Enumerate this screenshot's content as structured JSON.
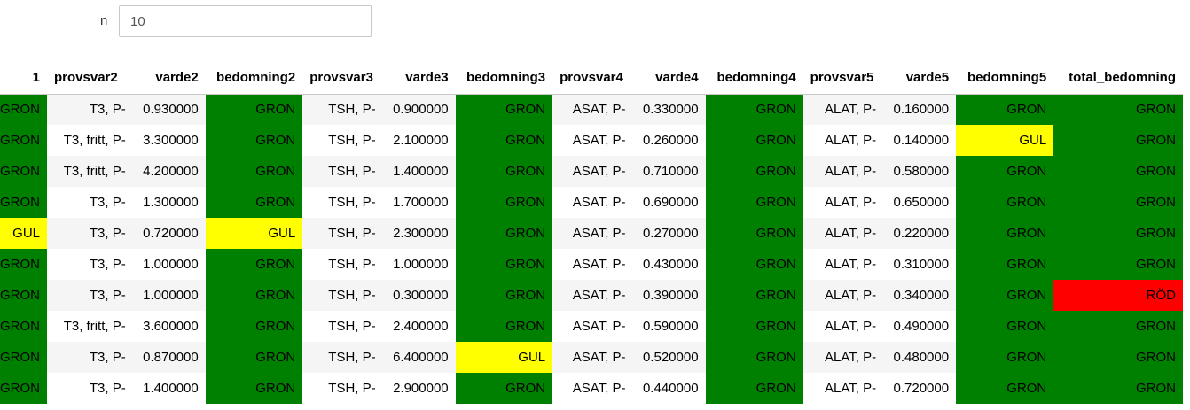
{
  "filter": {
    "label": "n",
    "value": "10"
  },
  "colors": {
    "GRON": "#008000",
    "GUL": "#ffff00",
    "RÖD": "#ff0000"
  },
  "table": {
    "columns": [
      {
        "key": "bedomning1",
        "label": "1",
        "align": "right",
        "width": 27
      },
      {
        "key": "provsvar2",
        "label": "provsvar2",
        "align": "left",
        "width": 102
      },
      {
        "key": "varde2",
        "label": "varde2",
        "align": "right",
        "width": 84
      },
      {
        "key": "bedomning2",
        "label": "bedomning2",
        "align": "right",
        "width": 112
      },
      {
        "key": "provsvar3",
        "label": "provsvar3",
        "align": "left",
        "width": 92
      },
      {
        "key": "varde3",
        "label": "varde3",
        "align": "right",
        "width": 84
      },
      {
        "key": "bedomning3",
        "label": "bedomning3",
        "align": "right",
        "width": 112
      },
      {
        "key": "provsvar4",
        "label": "provsvar4",
        "align": "left",
        "width": 92
      },
      {
        "key": "varde4",
        "label": "varde4",
        "align": "right",
        "width": 84
      },
      {
        "key": "bedomning4",
        "label": "bedomning4",
        "align": "right",
        "width": 113
      },
      {
        "key": "provsvar5",
        "label": "provsvar5",
        "align": "left",
        "width": 92
      },
      {
        "key": "varde5",
        "label": "varde5",
        "align": "right",
        "width": 84
      },
      {
        "key": "bedomning5",
        "label": "bedomning5",
        "align": "right",
        "width": 113
      },
      {
        "key": "total_bedomning",
        "label": "total_bedomning",
        "align": "right",
        "width": 151
      }
    ],
    "rows": [
      {
        "bedomning1": "GRON",
        "provsvar2": "T3, P-",
        "varde2": "0.930000",
        "bedomning2": "GRON",
        "provsvar3": "TSH, P-",
        "varde3": "0.900000",
        "bedomning3": "GRON",
        "provsvar4": "ASAT, P-",
        "varde4": "0.330000",
        "bedomning4": "GRON",
        "provsvar5": "ALAT, P-",
        "varde5": "0.160000",
        "bedomning5": "GRON",
        "total_bedomning": "GRON"
      },
      {
        "bedomning1": "GRON",
        "provsvar2": "T3, fritt, P-",
        "varde2": "3.300000",
        "bedomning2": "GRON",
        "provsvar3": "TSH, P-",
        "varde3": "2.100000",
        "bedomning3": "GRON",
        "provsvar4": "ASAT, P-",
        "varde4": "0.260000",
        "bedomning4": "GRON",
        "provsvar5": "ALAT, P-",
        "varde5": "0.140000",
        "bedomning5": "GUL",
        "total_bedomning": "GRON"
      },
      {
        "bedomning1": "GRON",
        "provsvar2": "T3, fritt, P-",
        "varde2": "4.200000",
        "bedomning2": "GRON",
        "provsvar3": "TSH, P-",
        "varde3": "1.400000",
        "bedomning3": "GRON",
        "provsvar4": "ASAT, P-",
        "varde4": "0.710000",
        "bedomning4": "GRON",
        "provsvar5": "ALAT, P-",
        "varde5": "0.580000",
        "bedomning5": "GRON",
        "total_bedomning": "GRON"
      },
      {
        "bedomning1": "GRON",
        "provsvar2": "T3, P-",
        "varde2": "1.300000",
        "bedomning2": "GRON",
        "provsvar3": "TSH, P-",
        "varde3": "1.700000",
        "bedomning3": "GRON",
        "provsvar4": "ASAT, P-",
        "varde4": "0.690000",
        "bedomning4": "GRON",
        "provsvar5": "ALAT, P-",
        "varde5": "0.650000",
        "bedomning5": "GRON",
        "total_bedomning": "GRON"
      },
      {
        "bedomning1": "GUL",
        "provsvar2": "T3, P-",
        "varde2": "0.720000",
        "bedomning2": "GUL",
        "provsvar3": "TSH, P-",
        "varde3": "2.300000",
        "bedomning3": "GRON",
        "provsvar4": "ASAT, P-",
        "varde4": "0.270000",
        "bedomning4": "GRON",
        "provsvar5": "ALAT, P-",
        "varde5": "0.220000",
        "bedomning5": "GRON",
        "total_bedomning": "GRON"
      },
      {
        "bedomning1": "GRON",
        "provsvar2": "T3, P-",
        "varde2": "1.000000",
        "bedomning2": "GRON",
        "provsvar3": "TSH, P-",
        "varde3": "1.000000",
        "bedomning3": "GRON",
        "provsvar4": "ASAT, P-",
        "varde4": "0.430000",
        "bedomning4": "GRON",
        "provsvar5": "ALAT, P-",
        "varde5": "0.310000",
        "bedomning5": "GRON",
        "total_bedomning": "GRON"
      },
      {
        "bedomning1": "GRON",
        "provsvar2": "T3, P-",
        "varde2": "1.000000",
        "bedomning2": "GRON",
        "provsvar3": "TSH, P-",
        "varde3": "0.300000",
        "bedomning3": "GRON",
        "provsvar4": "ASAT, P-",
        "varde4": "0.390000",
        "bedomning4": "GRON",
        "provsvar5": "ALAT, P-",
        "varde5": "0.340000",
        "bedomning5": "GRON",
        "total_bedomning": "RÖD"
      },
      {
        "bedomning1": "GRON",
        "provsvar2": "T3, fritt, P-",
        "varde2": "3.600000",
        "bedomning2": "GRON",
        "provsvar3": "TSH, P-",
        "varde3": "2.400000",
        "bedomning3": "GRON",
        "provsvar4": "ASAT, P-",
        "varde4": "0.590000",
        "bedomning4": "GRON",
        "provsvar5": "ALAT, P-",
        "varde5": "0.490000",
        "bedomning5": "GRON",
        "total_bedomning": "GRON"
      },
      {
        "bedomning1": "GRON",
        "provsvar2": "T3, P-",
        "varde2": "0.870000",
        "bedomning2": "GRON",
        "provsvar3": "TSH, P-",
        "varde3": "6.400000",
        "bedomning3": "GUL",
        "provsvar4": "ASAT, P-",
        "varde4": "0.520000",
        "bedomning4": "GRON",
        "provsvar5": "ALAT, P-",
        "varde5": "0.480000",
        "bedomning5": "GRON",
        "total_bedomning": "GRON"
      },
      {
        "bedomning1": "GRON",
        "provsvar2": "T3, P-",
        "varde2": "1.400000",
        "bedomning2": "GRON",
        "provsvar3": "TSH, P-",
        "varde3": "2.900000",
        "bedomning3": "GRON",
        "provsvar4": "ASAT, P-",
        "varde4": "0.440000",
        "bedomning4": "GRON",
        "provsvar5": "ALAT, P-",
        "varde5": "0.720000",
        "bedomning5": "GRON",
        "total_bedomning": "GRON"
      }
    ]
  }
}
